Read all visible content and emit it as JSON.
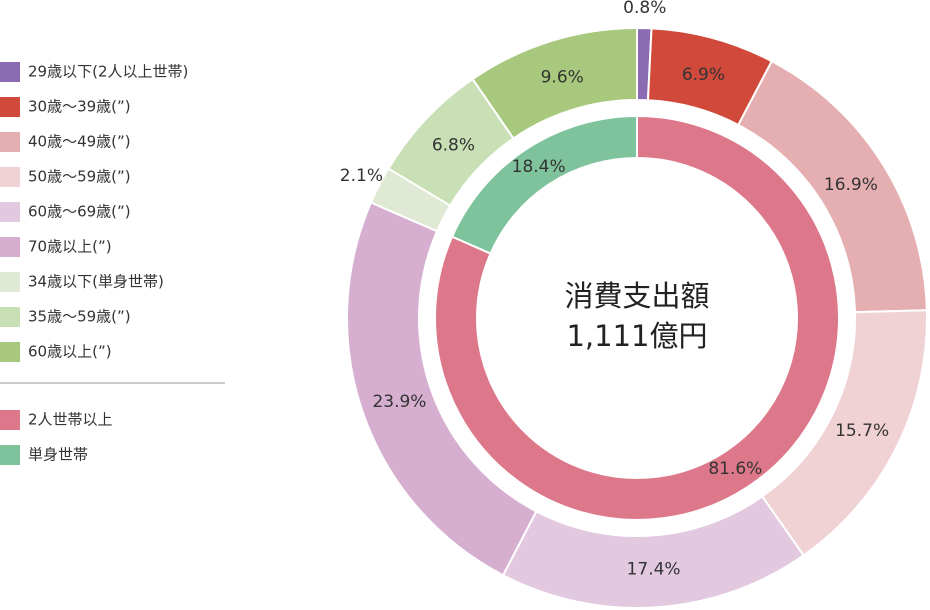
{
  "chart_data": [
    {
      "type": "pie",
      "categories": [
        "29歳以下(2人以上世帯)",
        "30歳～39歳(”)",
        "40歳～49歳(”)",
        "50歳～59歳(”)",
        "60歳～69歳(”)",
        "70歳以上(”)",
        "34歳以下(単身世帯)",
        "35歳～59歳(”)",
        "60歳以上(”)"
      ],
      "values": [
        0.8,
        6.9,
        16.9,
        15.7,
        17.4,
        23.9,
        2.1,
        6.8,
        9.6
      ],
      "value_labels": [
        "0.8%",
        "6.9%",
        "16.9%",
        "15.7%",
        "17.4%",
        "23.9%",
        "2.1%",
        "6.8%",
        "9.6%"
      ],
      "colors": [
        "#8b6bb1",
        "#d0493a",
        "#e5afb2",
        "#f0d2d4",
        "#e2c9e0",
        "#d6afd0",
        "#dfe9d3",
        "#c9dfb5",
        "#a8c87e"
      ]
    },
    {
      "type": "pie",
      "center_text": [
        "消費支出額",
        "1,111億円"
      ],
      "categories": [
        "2人世帯以上",
        "単身世帯"
      ],
      "values": [
        81.6,
        18.4
      ],
      "value_labels": [
        "81.6%",
        "18.4%"
      ],
      "colors": [
        "#dd788a",
        "#7fc39c"
      ]
    }
  ]
}
